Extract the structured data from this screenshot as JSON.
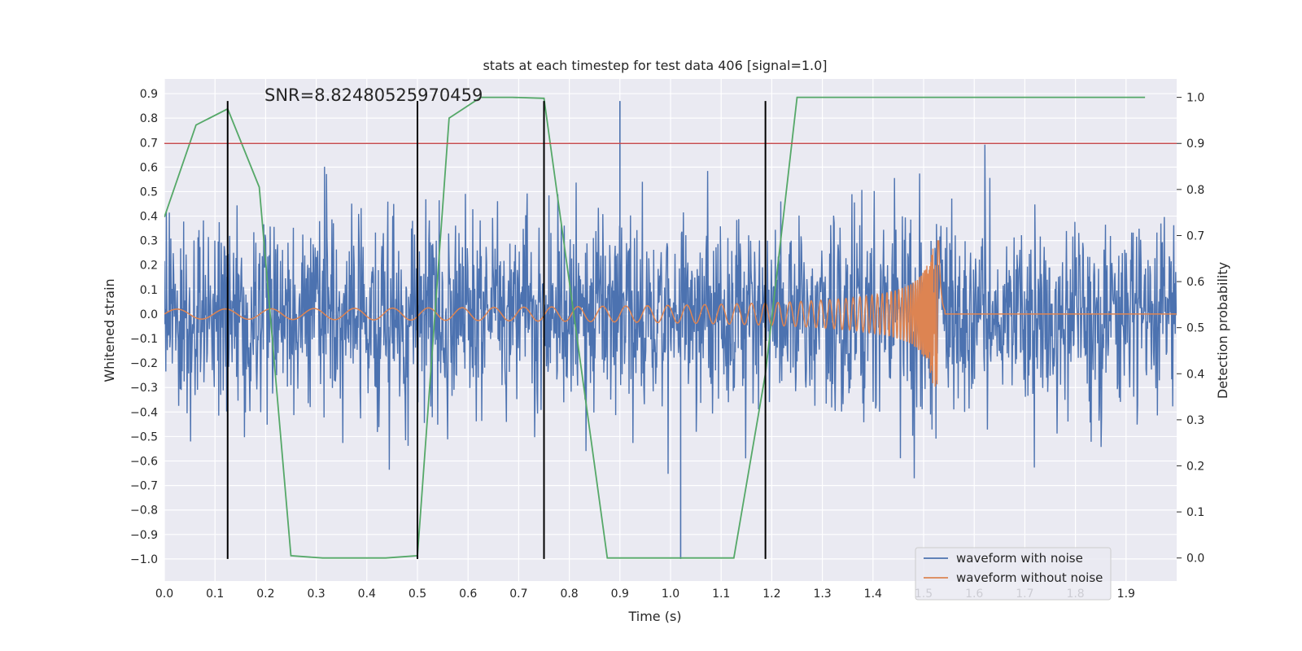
{
  "chart_data": {
    "type": "line",
    "title": "stats at each timestep for test data 406 [signal=1.0]",
    "xlabel": "Time (s)",
    "ylabel": "Whitened strain",
    "y2label": "Detection probability",
    "xlim": [
      0.0,
      2.0
    ],
    "ylim": [
      -1.09,
      0.96
    ],
    "y2lim": [
      -0.05,
      1.04
    ],
    "xticks": [
      "0.0",
      "0.1",
      "0.2",
      "0.3",
      "0.4",
      "0.5",
      "0.6",
      "0.7",
      "0.8",
      "0.9",
      "1.0",
      "1.1",
      "1.2",
      "1.3",
      "1.4",
      "1.5",
      "1.6",
      "1.7",
      "1.8",
      "1.9"
    ],
    "yticks": [
      "−1.0",
      "−0.9",
      "−0.8",
      "−0.7",
      "−0.6",
      "−0.5",
      "−0.4",
      "−0.3",
      "−0.2",
      "−0.1",
      "0.0",
      "0.1",
      "0.2",
      "0.3",
      "0.4",
      "0.5",
      "0.6",
      "0.7",
      "0.8",
      "0.9"
    ],
    "y2ticks": [
      "0.0",
      "0.1",
      "0.2",
      "0.3",
      "0.4",
      "0.5",
      "0.6",
      "0.7",
      "0.8",
      "0.9",
      "1.0"
    ],
    "grid": true,
    "legend_position": "bottom-right",
    "annotation": "SNR=8.82480525970459",
    "series": [
      {
        "name": "waveform with noise",
        "color": "#4c72b0",
        "axis": "left",
        "style": "noisy strain, std ~0.25, peaks near 0.87 at t=0.9 and -1.0 at t=1.02",
        "noise_std": 0.25,
        "t_range": [
          0.0,
          2.0
        ]
      },
      {
        "name": "waveform without noise",
        "color": "#dd8452",
        "axis": "left",
        "style": "inspiral chirp, amplitude 0.02 to 0.3, merger at t=1.53",
        "chirp": {
          "t_merger": 1.53,
          "amp_start": 0.02,
          "amp_peak": 0.3,
          "f_start": 10,
          "f_peak": 150
        }
      }
    ],
    "probability_line": {
      "color": "#55a868",
      "axis": "right",
      "x": [
        0.0,
        0.0625,
        0.125,
        0.1875,
        0.25,
        0.3125,
        0.375,
        0.4375,
        0.5,
        0.5625,
        0.625,
        0.6875,
        0.75,
        0.8125,
        0.875,
        0.9375,
        1.0,
        1.0625,
        1.125,
        1.1875,
        1.25,
        1.3125,
        1.375,
        1.4375,
        1.5,
        1.5625,
        1.625,
        1.6875,
        1.75,
        1.8125,
        1.875,
        1.9375
      ],
      "y": [
        0.74,
        0.94,
        0.975,
        0.805,
        0.005,
        0.0,
        0.0,
        0.0,
        0.005,
        0.955,
        1.0,
        1.0,
        0.998,
        0.5,
        0.0,
        0.0,
        0.0,
        0.0,
        0.0,
        0.4,
        1.0,
        1.0,
        1.0,
        1.0,
        1.0,
        1.0,
        1.0,
        1.0,
        1.0,
        1.0,
        1.0,
        1.0
      ]
    },
    "threshold_line": {
      "y2": 0.9,
      "color": "#c44e52"
    },
    "vertical_markers": {
      "x": [
        0.125,
        0.5,
        0.75,
        1.1875
      ],
      "ymin": -1.0,
      "ymax": 0.87,
      "color": "#000000"
    }
  }
}
